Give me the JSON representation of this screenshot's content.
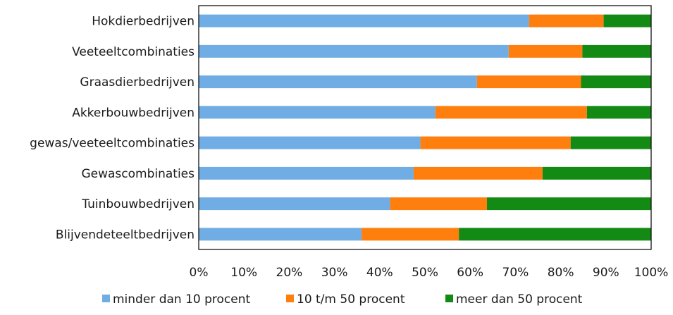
{
  "chart_data": {
    "type": "bar",
    "orientation": "horizontal",
    "stacked": true,
    "title": "",
    "xlabel": "",
    "ylabel": "",
    "xlim": [
      0,
      100
    ],
    "x_tick_labels": [
      "0%",
      "10%",
      "20%",
      "30%",
      "40%",
      "50%",
      "60%",
      "70%",
      "80%",
      "90%",
      "100%"
    ],
    "grid": false,
    "legend_position": "bottom",
    "categories": [
      "Hokdierbedrijven",
      "Veeteeltcombinaties",
      "Graasdierbedrijven",
      "Akkerbouwbedrijven",
      "gewas/veeteeltcombinaties",
      "Gewascombinaties",
      "Tuinbouwbedrijven",
      "Blijvendeteeltbedrijven"
    ],
    "series": [
      {
        "name": "minder dan 10 procent",
        "color": "#6fade4",
        "values": [
          73,
          68.5,
          61.5,
          52.3,
          49,
          47.5,
          42.3,
          36
        ]
      },
      {
        "name": "10 t/m 50 procent",
        "color": "#ff7f0e",
        "values": [
          16.5,
          16.3,
          23,
          33.5,
          33.2,
          28.5,
          21.4,
          21.5
        ]
      },
      {
        "name": "meer dan 50 procent",
        "color": "#138a13",
        "values": [
          10.5,
          15.2,
          15.5,
          14.2,
          17.8,
          24,
          36.3,
          42.5
        ]
      }
    ]
  }
}
